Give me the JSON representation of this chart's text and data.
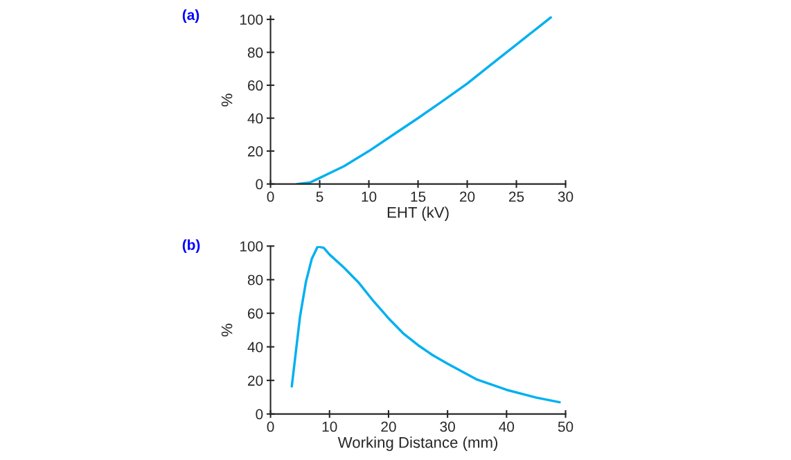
{
  "chart_data": [
    {
      "type": "line",
      "title": "(a)",
      "xlabel": "EHT (kV)",
      "ylabel": "%",
      "xlim": [
        0,
        30
      ],
      "xticks": [
        0,
        5,
        10,
        15,
        20,
        25,
        30
      ],
      "ylim": [
        0,
        102
      ],
      "yticks": [
        0,
        20,
        40,
        60,
        80,
        100
      ],
      "grid": false,
      "legend": false,
      "marker": "none",
      "line_style": "solid",
      "series": [
        {
          "color": "#00b0f0",
          "x": [
            2.7,
            4,
            5,
            7.5,
            10,
            12.5,
            15,
            17.5,
            20,
            22.5,
            25,
            27.5,
            28.5
          ],
          "values": [
            0,
            0.9,
            3.7,
            10.9,
            20,
            30,
            40,
            50.4,
            61,
            72.9,
            84.7,
            96.5,
            101.2
          ]
        }
      ]
    },
    {
      "type": "line",
      "title": "(b)",
      "xlabel": "Working Distance (mm)",
      "ylabel": "%",
      "xlim": [
        0,
        50
      ],
      "xticks": [
        0,
        10,
        20,
        30,
        40,
        50
      ],
      "ylim": [
        0,
        100
      ],
      "yticks": [
        0,
        20,
        40,
        60,
        80,
        100
      ],
      "grid": false,
      "legend": false,
      "marker": "none",
      "line_style": "solid",
      "series": [
        {
          "color": "#00b0f0",
          "x": [
            3.6,
            5,
            6,
            7,
            8,
            9,
            10,
            12.5,
            15,
            17.5,
            20,
            22.5,
            25,
            27.5,
            30,
            35,
            40,
            45,
            49
          ],
          "values": [
            16.4,
            58,
            78.7,
            92.5,
            99.8,
            99,
            95,
            87,
            78,
            67,
            57,
            48,
            41,
            35,
            30,
            20.5,
            14.4,
            9.8,
            7
          ]
        }
      ]
    }
  ]
}
